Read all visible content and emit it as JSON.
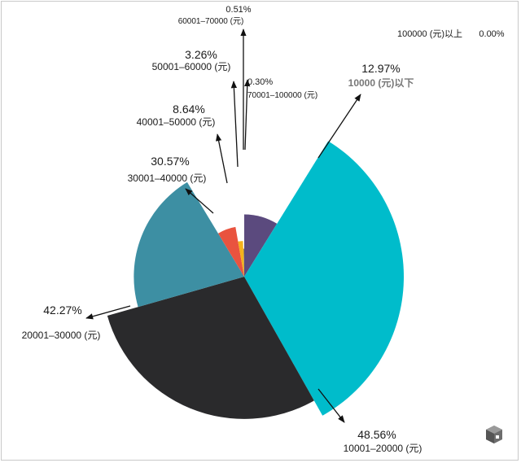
{
  "chart_data": {
    "type": "pie",
    "variant": "rose",
    "title": "",
    "slices": [
      {
        "category": "10000 (元)以下",
        "value": 12.97,
        "label": "12.97%",
        "color": "#5b4a7e",
        "muted": true
      },
      {
        "category": "10001–20000 (元)",
        "value": 48.56,
        "label": "48.56%",
        "color": "#00bccb"
      },
      {
        "category": "20001–30000 (元)",
        "value": 42.27,
        "label": "42.27%",
        "color": "#2a2a2c"
      },
      {
        "category": "30001–40000 (元)",
        "value": 30.57,
        "label": "30.57%",
        "color": "#3d8fa3"
      },
      {
        "category": "40001–50000 (元)",
        "value": 8.64,
        "label": "8.64%",
        "color": "#e9533f"
      },
      {
        "category": "50001–60000 (元)",
        "value": 3.26,
        "label": "3.26%",
        "color": "#f5b21b"
      },
      {
        "category": "60001–70000 (元)",
        "value": 0.51,
        "label": "0.51%",
        "color": "#e07b2a"
      },
      {
        "category": "70001–100000 (元)",
        "value": 0.3,
        "label": "0.30%",
        "color": "#4c9a3a"
      },
      {
        "category": "100000 (元)以上",
        "value": 0.0,
        "label": "0.00%",
        "color": "#888888"
      }
    ]
  }
}
